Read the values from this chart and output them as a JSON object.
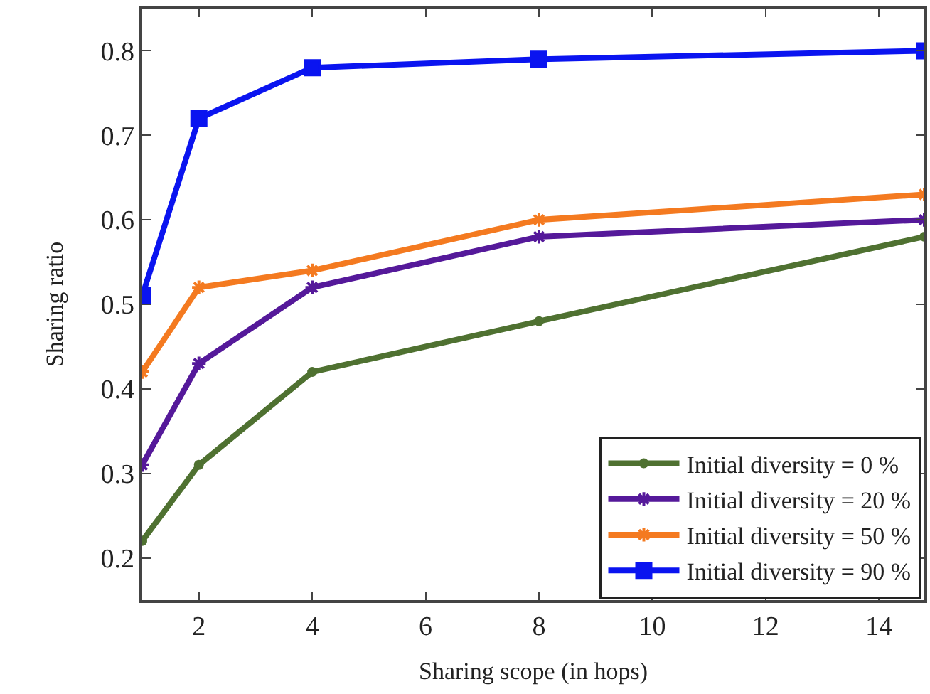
{
  "chart_data": {
    "type": "line",
    "xlabel": "Sharing scope (in hops)",
    "ylabel": "Sharing ratio",
    "x": [
      1,
      2,
      4,
      8,
      14.8
    ],
    "series": [
      {
        "name": "Initial diversity = 0 %",
        "color": "#4f7131",
        "marker": "circle",
        "values": [
          0.22,
          0.31,
          0.42,
          0.48,
          0.58
        ]
      },
      {
        "name": "Initial diversity = 20 %",
        "color": "#55199a",
        "marker": "cross",
        "values": [
          0.31,
          0.43,
          0.52,
          0.58,
          0.6
        ]
      },
      {
        "name": "Initial diversity = 50 %",
        "color": "#f47a20",
        "marker": "cross",
        "values": [
          0.42,
          0.52,
          0.54,
          0.6,
          0.63
        ]
      },
      {
        "name": "Initial diversity = 90 %",
        "color": "#0a14f0",
        "marker": "square",
        "values": [
          0.51,
          0.72,
          0.78,
          0.79,
          0.8
        ]
      }
    ],
    "xlim": [
      1,
      14.8
    ],
    "xticks": [
      2,
      4,
      6,
      8,
      10,
      12,
      14
    ],
    "ylim": [
      0.15,
      0.85
    ],
    "yticks": [
      0.2,
      0.3,
      0.4,
      0.5,
      0.6,
      0.7,
      0.8
    ],
    "legend": "bottom right",
    "line_style": "solid"
  }
}
